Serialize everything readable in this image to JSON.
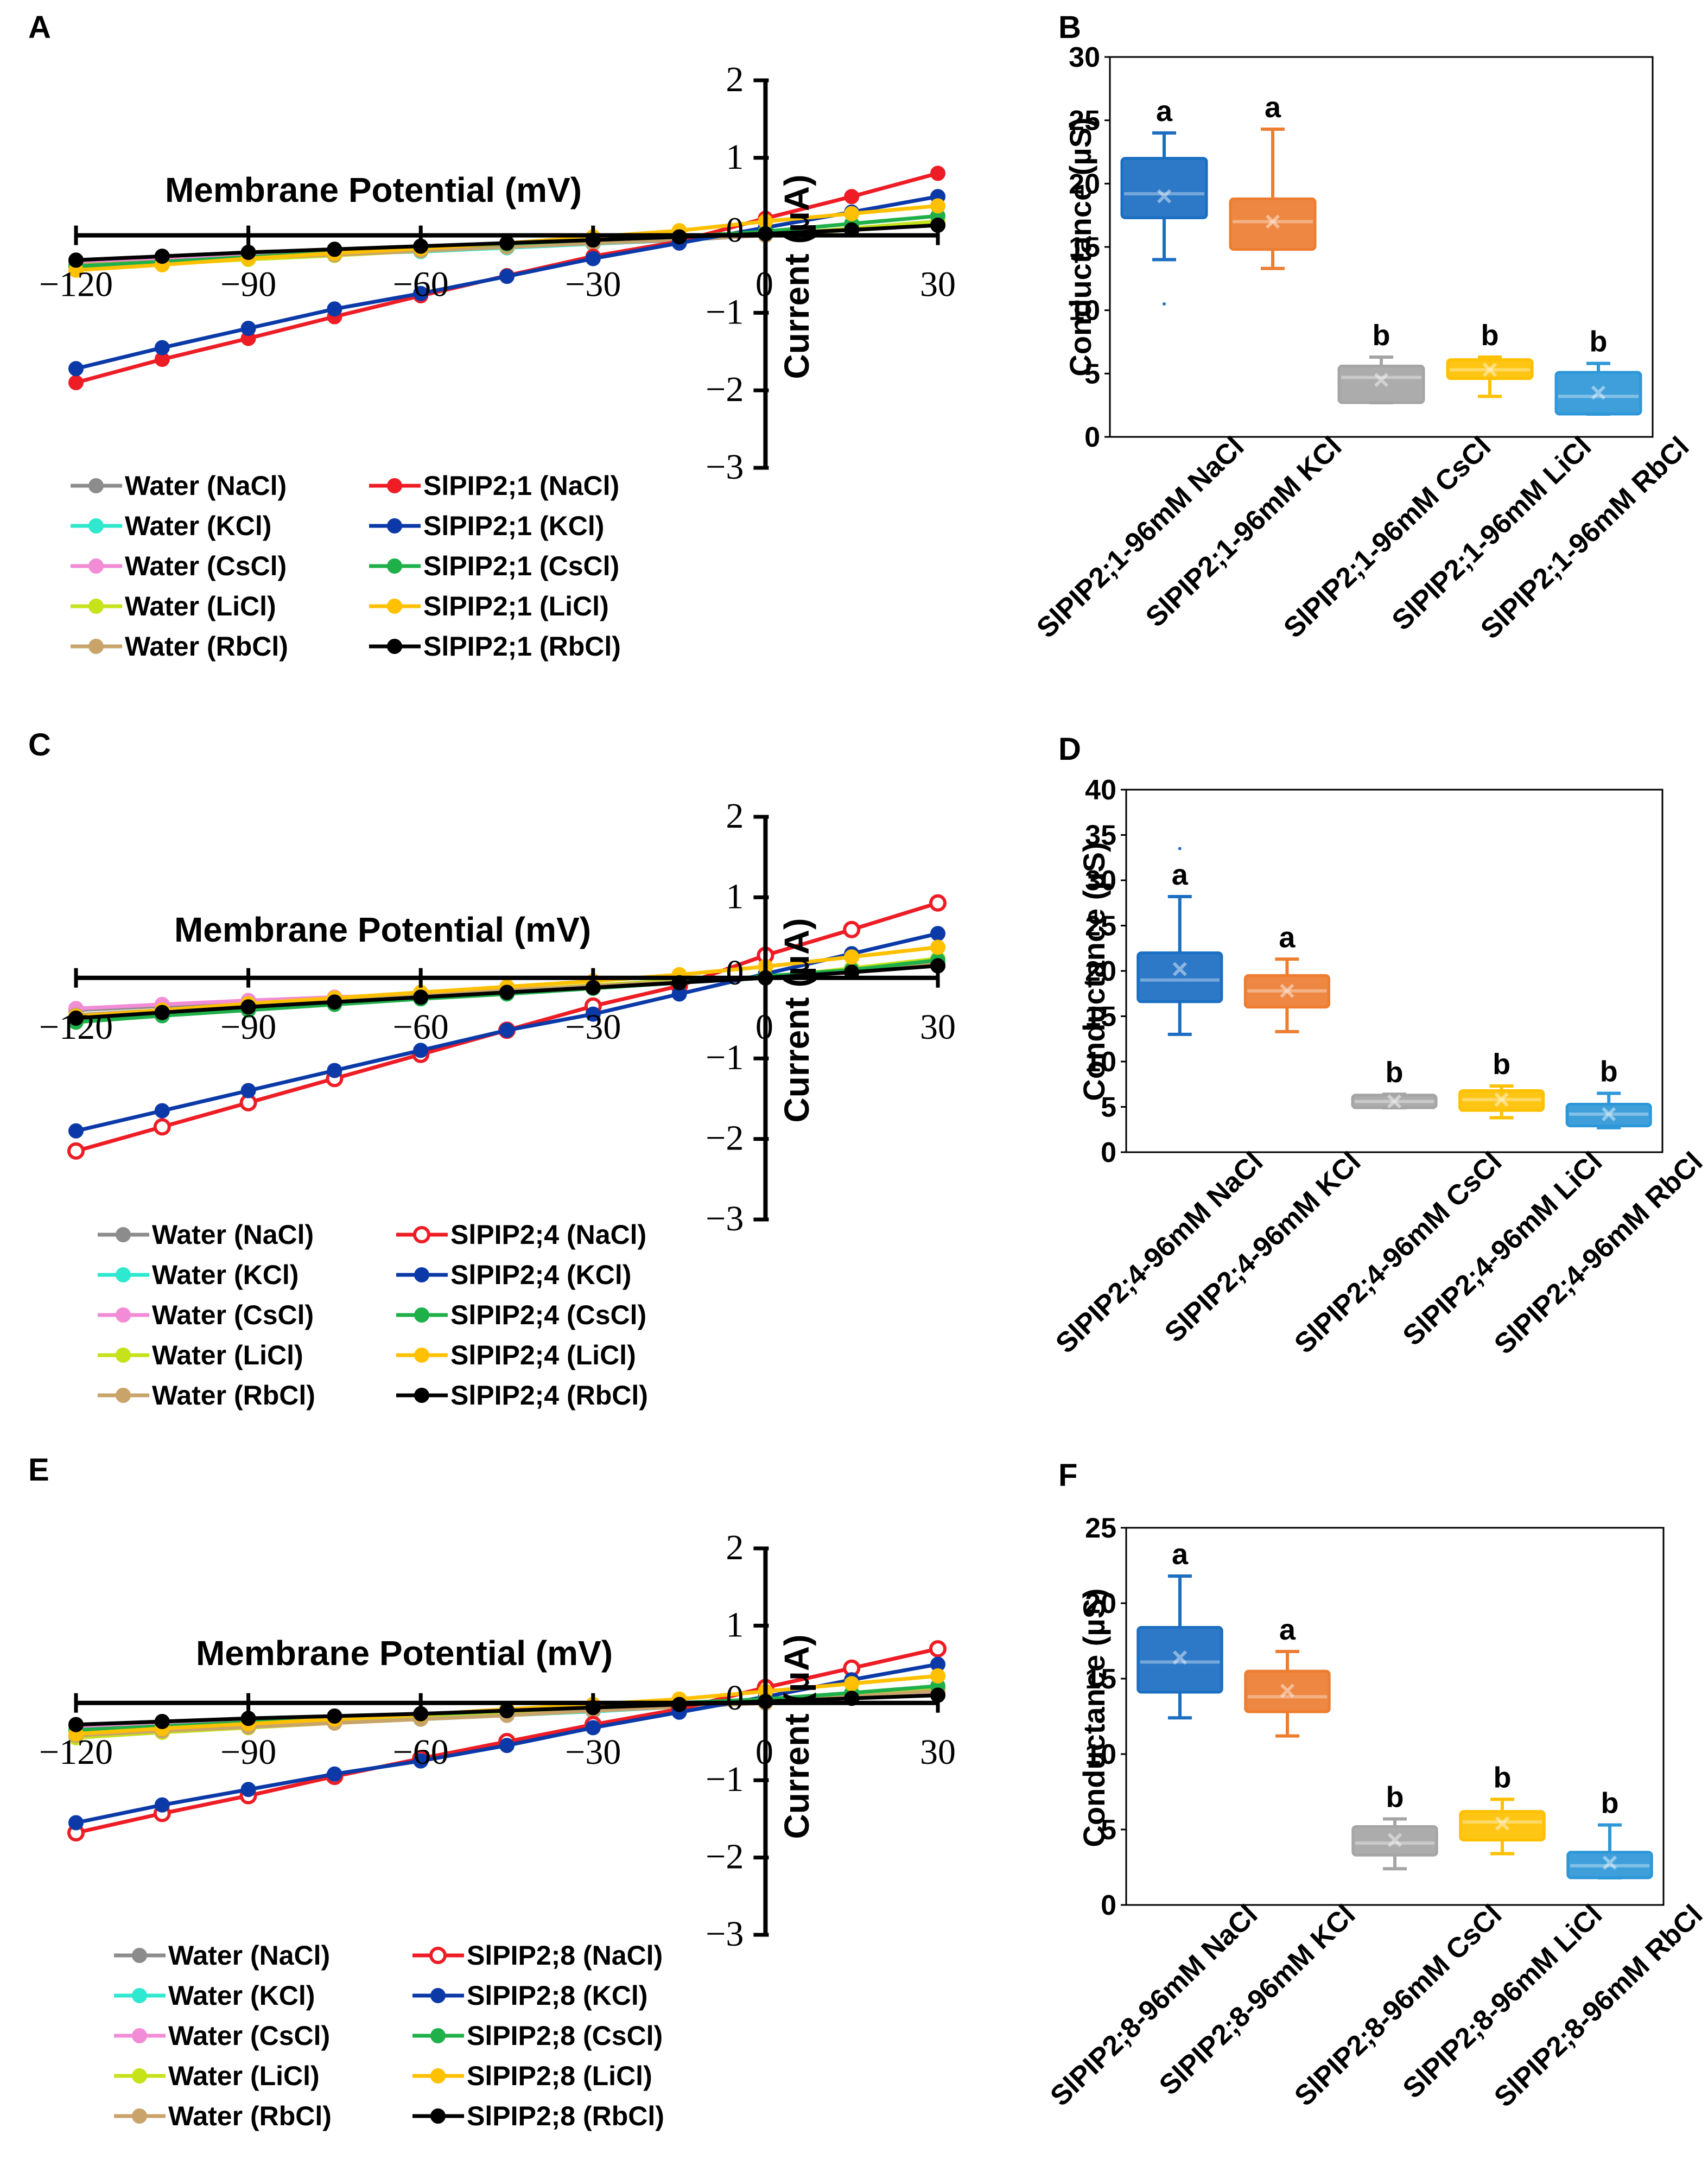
{
  "chart_data": [
    {
      "panel": "A",
      "type": "line",
      "title": "Membrane Potential (mV)",
      "xlabel": "Membrane Potential (mV)",
      "ylabel": "Current (μA)",
      "xlim": [
        -120,
        30
      ],
      "ylim": [
        -3,
        2
      ],
      "xticks": [
        -120,
        -90,
        -60,
        -30,
        0,
        30
      ],
      "xtick_labels": [
        "−120",
        "−90",
        "−60",
        "−30",
        "0",
        "30"
      ],
      "yticks": [
        2,
        1,
        0,
        -1,
        -2,
        -3
      ],
      "ytick_labels": [
        "2",
        "1",
        "0",
        "−1",
        "−2",
        "−3"
      ],
      "x": [
        -120,
        -105,
        -90,
        -75,
        -60,
        -45,
        -30,
        -15,
        0,
        15,
        30
      ],
      "series": [
        {
          "name": "Water (NaCl)",
          "color": "#8c8c8c",
          "marker": "filled",
          "values": [
            -0.33,
            -0.3,
            -0.26,
            -0.23,
            -0.2,
            -0.16,
            -0.11,
            -0.06,
            0.0,
            0.08,
            0.16
          ]
        },
        {
          "name": "Water (KCl)",
          "color": "#2ee8cf",
          "marker": "filled",
          "values": [
            -0.36,
            -0.32,
            -0.28,
            -0.24,
            -0.21,
            -0.16,
            -0.11,
            -0.05,
            0.0,
            0.07,
            0.14
          ]
        },
        {
          "name": "Water (CsCl)",
          "color": "#f28cd6",
          "marker": "filled",
          "values": [
            -0.34,
            -0.3,
            -0.27,
            -0.23,
            -0.19,
            -0.15,
            -0.1,
            -0.05,
            0.0,
            0.07,
            0.13
          ]
        },
        {
          "name": "Water (LiCl)",
          "color": "#c5e21a",
          "marker": "filled",
          "values": [
            -0.42,
            -0.37,
            -0.31,
            -0.26,
            -0.2,
            -0.14,
            -0.08,
            -0.03,
            0.0,
            0.09,
            0.18
          ]
        },
        {
          "name": "Water (RbCl)",
          "color": "#c9a46a",
          "marker": "filled",
          "values": [
            -0.38,
            -0.34,
            -0.29,
            -0.25,
            -0.2,
            -0.15,
            -0.1,
            -0.05,
            0.0,
            0.07,
            0.13
          ]
        },
        {
          "name": "SlPIP2;1 (NaCl)",
          "color": "#ee1c25",
          "marker": "filled",
          "values": [
            -1.9,
            -1.6,
            -1.33,
            -1.05,
            -0.78,
            -0.52,
            -0.27,
            -0.08,
            0.22,
            0.5,
            0.8
          ]
        },
        {
          "name": "SlPIP2;1 (KCl)",
          "color": "#0b3aa8",
          "marker": "filled",
          "values": [
            -1.72,
            -1.45,
            -1.2,
            -0.95,
            -0.75,
            -0.53,
            -0.3,
            -0.1,
            0.1,
            0.3,
            0.5
          ]
        },
        {
          "name": "SlPIP2;1 (CsCl)",
          "color": "#1fb04a",
          "marker": "filled",
          "values": [
            -0.4,
            -0.34,
            -0.28,
            -0.22,
            -0.16,
            -0.11,
            -0.06,
            -0.02,
            0.05,
            0.15,
            0.25
          ]
        },
        {
          "name": "SlPIP2;1 (LiCl)",
          "color": "#ffc000",
          "marker": "filled",
          "values": [
            -0.45,
            -0.38,
            -0.3,
            -0.23,
            -0.17,
            -0.1,
            -0.02,
            0.06,
            0.18,
            0.28,
            0.38
          ]
        },
        {
          "name": "SlPIP2;1 (RbCl)",
          "color": "#000000",
          "marker": "filled",
          "values": [
            -0.32,
            -0.27,
            -0.22,
            -0.18,
            -0.14,
            -0.1,
            -0.06,
            -0.02,
            0.02,
            0.07,
            0.13
          ]
        }
      ]
    },
    {
      "panel": "B",
      "type": "box",
      "ylabel": "Conductance (µS)",
      "ylim": [
        0,
        30
      ],
      "yticks": [
        0,
        5,
        10,
        15,
        20,
        25,
        30
      ],
      "categories": [
        "SlPIP2;1-96mM NaCl",
        "SlPIP2;1-96mM KCl",
        "SlPIP2;1-96mM CsCl",
        "SlPIP2;1-96mM LiCl",
        "SlPIP2;1-96mM RbCl"
      ],
      "letters": [
        "a",
        "a",
        "b",
        "b",
        "b"
      ],
      "colors": [
        "#1b6ec2",
        "#ed7d31",
        "#a5a5a5",
        "#ffc000",
        "#2e97d8"
      ],
      "boxes": [
        {
          "min": 14,
          "q1": 17.3,
          "median": 19.2,
          "mean": 19,
          "q3": 22,
          "max": 24,
          "outliers": [
            10.5
          ]
        },
        {
          "min": 13.3,
          "q1": 14.8,
          "median": 17,
          "mean": 17,
          "q3": 18.8,
          "max": 24.3,
          "outliers": []
        },
        {
          "min": 2.7,
          "q1": 2.7,
          "median": 4.7,
          "mean": 4.5,
          "q3": 5.6,
          "max": 6.3,
          "outliers": []
        },
        {
          "min": 3.2,
          "q1": 4.6,
          "median": 5.3,
          "mean": 5.3,
          "q3": 6.1,
          "max": 6.3,
          "outliers": []
        },
        {
          "min": 1.8,
          "q1": 1.8,
          "median": 3.2,
          "mean": 3.5,
          "q3": 5.1,
          "max": 5.8,
          "outliers": []
        }
      ]
    },
    {
      "panel": "C",
      "type": "line",
      "title": "Membrane Potential (mV)",
      "xlabel": "Membrane Potential (mV)",
      "ylabel": "Current (μA)",
      "xlim": [
        -120,
        30
      ],
      "ylim": [
        -3,
        2
      ],
      "xticks": [
        -120,
        -90,
        -60,
        -30,
        0,
        30
      ],
      "xtick_labels": [
        "−120",
        "−90",
        "−60",
        "−30",
        "0",
        "30"
      ],
      "yticks": [
        2,
        1,
        0,
        -1,
        -2,
        -3
      ],
      "ytick_labels": [
        "2",
        "1",
        "0",
        "−1",
        "−2",
        "−3"
      ],
      "x": [
        -120,
        -105,
        -90,
        -75,
        -60,
        -45,
        -30,
        -15,
        0,
        15,
        30
      ],
      "series": [
        {
          "name": "Water (NaCl)",
          "color": "#8c8c8c",
          "marker": "filled",
          "values": [
            -0.4,
            -0.35,
            -0.3,
            -0.25,
            -0.2,
            -0.15,
            -0.1,
            -0.05,
            0.0,
            0.1,
            0.2
          ]
        },
        {
          "name": "Water (KCl)",
          "color": "#2ee8cf",
          "marker": "filled",
          "values": [
            -0.52,
            -0.46,
            -0.39,
            -0.32,
            -0.26,
            -0.19,
            -0.12,
            -0.06,
            0.0,
            0.1,
            0.2
          ]
        },
        {
          "name": "Water (CsCl)",
          "color": "#f28cd6",
          "marker": "filled",
          "values": [
            -0.38,
            -0.33,
            -0.28,
            -0.24,
            -0.2,
            -0.15,
            -0.1,
            -0.05,
            0.0,
            0.08,
            0.16
          ]
        },
        {
          "name": "Water (LiCl)",
          "color": "#c5e21a",
          "marker": "filled",
          "values": [
            -0.5,
            -0.44,
            -0.37,
            -0.3,
            -0.23,
            -0.16,
            -0.09,
            -0.03,
            0.0,
            0.12,
            0.24
          ]
        },
        {
          "name": "Water (RbCl)",
          "color": "#c9a46a",
          "marker": "filled",
          "values": [
            -0.46,
            -0.4,
            -0.34,
            -0.28,
            -0.22,
            -0.16,
            -0.1,
            -0.05,
            0.0,
            0.1,
            0.2
          ]
        },
        {
          "name": "SlPIP2;4 (NaCl)",
          "color": "#ee1c25",
          "marker": "open",
          "values": [
            -2.15,
            -1.85,
            -1.55,
            -1.25,
            -0.95,
            -0.65,
            -0.35,
            -0.1,
            0.28,
            0.6,
            0.93
          ]
        },
        {
          "name": "SlPIP2;4 (KCl)",
          "color": "#0b3aa8",
          "marker": "filled",
          "values": [
            -1.9,
            -1.65,
            -1.4,
            -1.15,
            -0.9,
            -0.65,
            -0.45,
            -0.2,
            0.05,
            0.3,
            0.55
          ]
        },
        {
          "name": "SlPIP2;4 (CsCl)",
          "color": "#1fb04a",
          "marker": "filled",
          "values": [
            -0.55,
            -0.47,
            -0.4,
            -0.33,
            -0.26,
            -0.2,
            -0.13,
            -0.06,
            0.02,
            0.1,
            0.22
          ]
        },
        {
          "name": "SlPIP2;4 (LiCl)",
          "color": "#ffc000",
          "marker": "filled",
          "values": [
            -0.48,
            -0.4,
            -0.32,
            -0.25,
            -0.18,
            -0.11,
            -0.04,
            0.04,
            0.14,
            0.26,
            0.38
          ]
        },
        {
          "name": "SlPIP2;4 (RbCl)",
          "color": "#000000",
          "marker": "filled",
          "values": [
            -0.5,
            -0.43,
            -0.36,
            -0.3,
            -0.24,
            -0.18,
            -0.12,
            -0.06,
            0.0,
            0.07,
            0.15
          ]
        }
      ]
    },
    {
      "panel": "D",
      "type": "box",
      "ylabel": "Conductance (µS)",
      "ylim": [
        0,
        40
      ],
      "yticks": [
        0,
        5,
        10,
        15,
        20,
        25,
        30,
        35,
        40
      ],
      "categories": [
        "SlPIP2;4-96mM NaCl",
        "SlPIP2;4-96mM KCl",
        "SlPIP2;4-96mM CsCl",
        "SlPIP2;4-96mM LiCl",
        "SlPIP2;4-96mM RbCl"
      ],
      "letters": [
        "a",
        "a",
        "b",
        "b",
        "b"
      ],
      "colors": [
        "#1b6ec2",
        "#ed7d31",
        "#a5a5a5",
        "#ffc000",
        "#2e97d8"
      ],
      "boxes": [
        {
          "min": 13,
          "q1": 16.6,
          "median": 19,
          "mean": 20.2,
          "q3": 22,
          "max": 28.2,
          "outliers": [
            33.5
          ]
        },
        {
          "min": 13.3,
          "q1": 16,
          "median": 17.8,
          "mean": 17.8,
          "q3": 19.5,
          "max": 21.3,
          "outliers": []
        },
        {
          "min": 4.9,
          "q1": 4.9,
          "median": 5.6,
          "mean": 5.6,
          "q3": 6.3,
          "max": 6.4,
          "outliers": []
        },
        {
          "min": 3.8,
          "q1": 4.6,
          "median": 5.8,
          "mean": 5.8,
          "q3": 6.8,
          "max": 7.3,
          "outliers": []
        },
        {
          "min": 2.7,
          "q1": 2.9,
          "median": 4.2,
          "mean": 4.2,
          "q3": 5.3,
          "max": 6.5,
          "outliers": []
        }
      ]
    },
    {
      "panel": "E",
      "type": "line",
      "title": "Membrane Potential (mV)",
      "xlabel": "Membrane Potential (mV)",
      "ylabel": "Current (μA)",
      "xlim": [
        -120,
        30
      ],
      "ylim": [
        -3,
        2
      ],
      "xticks": [
        -120,
        -90,
        -60,
        -30,
        0,
        30
      ],
      "xtick_labels": [
        "−120",
        "−90",
        "−60",
        "−30",
        "0",
        "30"
      ],
      "yticks": [
        2,
        1,
        0,
        -1,
        -2,
        -3
      ],
      "ytick_labels": [
        "2",
        "1",
        "0",
        "−1",
        "−2",
        "−3"
      ],
      "x": [
        -120,
        -105,
        -90,
        -75,
        -60,
        -45,
        -30,
        -15,
        0,
        15,
        30
      ],
      "series": [
        {
          "name": "Water (NaCl)",
          "color": "#8c8c8c",
          "marker": "filled",
          "values": [
            -0.35,
            -0.31,
            -0.27,
            -0.23,
            -0.2,
            -0.15,
            -0.1,
            -0.05,
            0.0,
            0.08,
            0.16
          ]
        },
        {
          "name": "Water (KCl)",
          "color": "#2ee8cf",
          "marker": "filled",
          "values": [
            -0.37,
            -0.33,
            -0.29,
            -0.25,
            -0.21,
            -0.16,
            -0.11,
            -0.05,
            0.0,
            0.07,
            0.14
          ]
        },
        {
          "name": "Water (CsCl)",
          "color": "#f28cd6",
          "marker": "filled",
          "values": [
            -0.3,
            -0.27,
            -0.24,
            -0.21,
            -0.18,
            -0.14,
            -0.1,
            -0.05,
            0.0,
            0.06,
            0.12
          ]
        },
        {
          "name": "Water (LiCl)",
          "color": "#c5e21a",
          "marker": "filled",
          "values": [
            -0.45,
            -0.38,
            -0.32,
            -0.26,
            -0.2,
            -0.14,
            -0.08,
            -0.03,
            0.0,
            0.1,
            0.2
          ]
        },
        {
          "name": "Water (RbCl)",
          "color": "#c9a46a",
          "marker": "filled",
          "values": [
            -0.42,
            -0.36,
            -0.31,
            -0.26,
            -0.21,
            -0.16,
            -0.1,
            -0.05,
            0.0,
            0.08,
            0.16
          ]
        },
        {
          "name": "SlPIP2;8 (NaCl)",
          "color": "#ee1c25",
          "marker": "open",
          "values": [
            -1.68,
            -1.43,
            -1.2,
            -0.95,
            -0.72,
            -0.5,
            -0.28,
            -0.08,
            0.2,
            0.45,
            0.7
          ]
        },
        {
          "name": "SlPIP2;8 (KCl)",
          "color": "#0b3aa8",
          "marker": "filled",
          "values": [
            -1.55,
            -1.32,
            -1.12,
            -0.92,
            -0.75,
            -0.55,
            -0.32,
            -0.12,
            0.08,
            0.3,
            0.5
          ]
        },
        {
          "name": "SlPIP2;8 (CsCl)",
          "color": "#1fb04a",
          "marker": "filled",
          "values": [
            -0.35,
            -0.3,
            -0.25,
            -0.2,
            -0.15,
            -0.1,
            -0.05,
            0.0,
            0.05,
            0.13,
            0.22
          ]
        },
        {
          "name": "SlPIP2;8 (LiCl)",
          "color": "#ffc000",
          "marker": "filled",
          "values": [
            -0.4,
            -0.33,
            -0.27,
            -0.21,
            -0.15,
            -0.08,
            -0.02,
            0.05,
            0.15,
            0.25,
            0.35
          ]
        },
        {
          "name": "SlPIP2;8 (RbCl)",
          "color": "#000000",
          "marker": "filled",
          "values": [
            -0.28,
            -0.24,
            -0.2,
            -0.17,
            -0.14,
            -0.1,
            -0.06,
            -0.02,
            0.02,
            0.06,
            0.1
          ]
        }
      ]
    },
    {
      "panel": "F",
      "type": "box",
      "ylabel": "Conductance (µS)",
      "ylim": [
        0,
        25
      ],
      "yticks": [
        0,
        5,
        10,
        15,
        20,
        25
      ],
      "categories": [
        "SlPIP2;8-96mM NaCl",
        "SlPIP2;8-96mM KCl",
        "SlPIP2;8-96mM CsCl",
        "SlPIP2;8-96mM LiCl",
        "SlPIP2;8-96mM RbCl"
      ],
      "letters": [
        "a",
        "a",
        "b",
        "b",
        "b"
      ],
      "colors": [
        "#1b6ec2",
        "#ed7d31",
        "#a5a5a5",
        "#ffc000",
        "#2e97d8"
      ],
      "boxes": [
        {
          "min": 12.4,
          "q1": 14.1,
          "median": 16.1,
          "mean": 16.4,
          "q3": 18.4,
          "max": 21.8,
          "outliers": []
        },
        {
          "min": 11.2,
          "q1": 12.8,
          "median": 13.8,
          "mean": 14.2,
          "q3": 15.5,
          "max": 16.8,
          "outliers": []
        },
        {
          "min": 2.4,
          "q1": 3.3,
          "median": 4.1,
          "mean": 4.3,
          "q3": 5.2,
          "max": 5.7,
          "outliers": []
        },
        {
          "min": 3.4,
          "q1": 4.3,
          "median": 5.5,
          "mean": 5.4,
          "q3": 6.2,
          "max": 7.0,
          "outliers": []
        },
        {
          "min": 1.8,
          "q1": 1.8,
          "median": 2.6,
          "mean": 2.8,
          "q3": 3.5,
          "max": 5.3,
          "outliers": []
        }
      ]
    }
  ]
}
